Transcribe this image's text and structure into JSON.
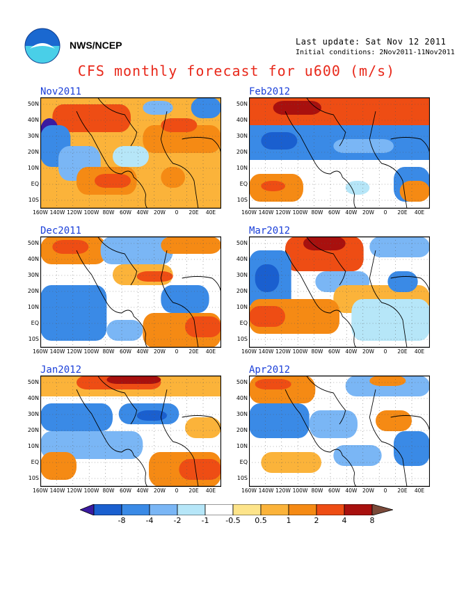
{
  "header": {
    "agency": "NWS/NCEP",
    "last_update": "Last update: Sat Nov 12 2011",
    "initial_conditions": "Initial conditions: 2Nov2011-11Nov2011",
    "title": "CFS monthly forecast for u600 (m/s)"
  },
  "panels": [
    {
      "title": "Nov2011"
    },
    {
      "title": "Feb2012"
    },
    {
      "title": "Dec2011"
    },
    {
      "title": "Mar2012"
    },
    {
      "title": "Jan2012"
    },
    {
      "title": "Apr2012"
    }
  ],
  "axes": {
    "y_ticks": [
      "50N",
      "40N",
      "30N",
      "20N",
      "10N",
      "EQ",
      "10S"
    ],
    "x_ticks": [
      "160W",
      "140W",
      "120W",
      "100W",
      "80W",
      "60W",
      "40W",
      "20W",
      "0",
      "20E",
      "40E"
    ]
  },
  "colorbar": {
    "labels": [
      "-8",
      "-4",
      "-2",
      "-1",
      "-0.5",
      "0.5",
      "1",
      "2",
      "4",
      "8"
    ],
    "colors": [
      "#3a1aa0",
      "#1a5fcf",
      "#3a8ae6",
      "#7ab6f5",
      "#b6e6f8",
      "#ffffff",
      "#fde48a",
      "#fbb33a",
      "#f58a14",
      "#ee4d14",
      "#a8100e",
      "#7a4a3a"
    ]
  }
}
